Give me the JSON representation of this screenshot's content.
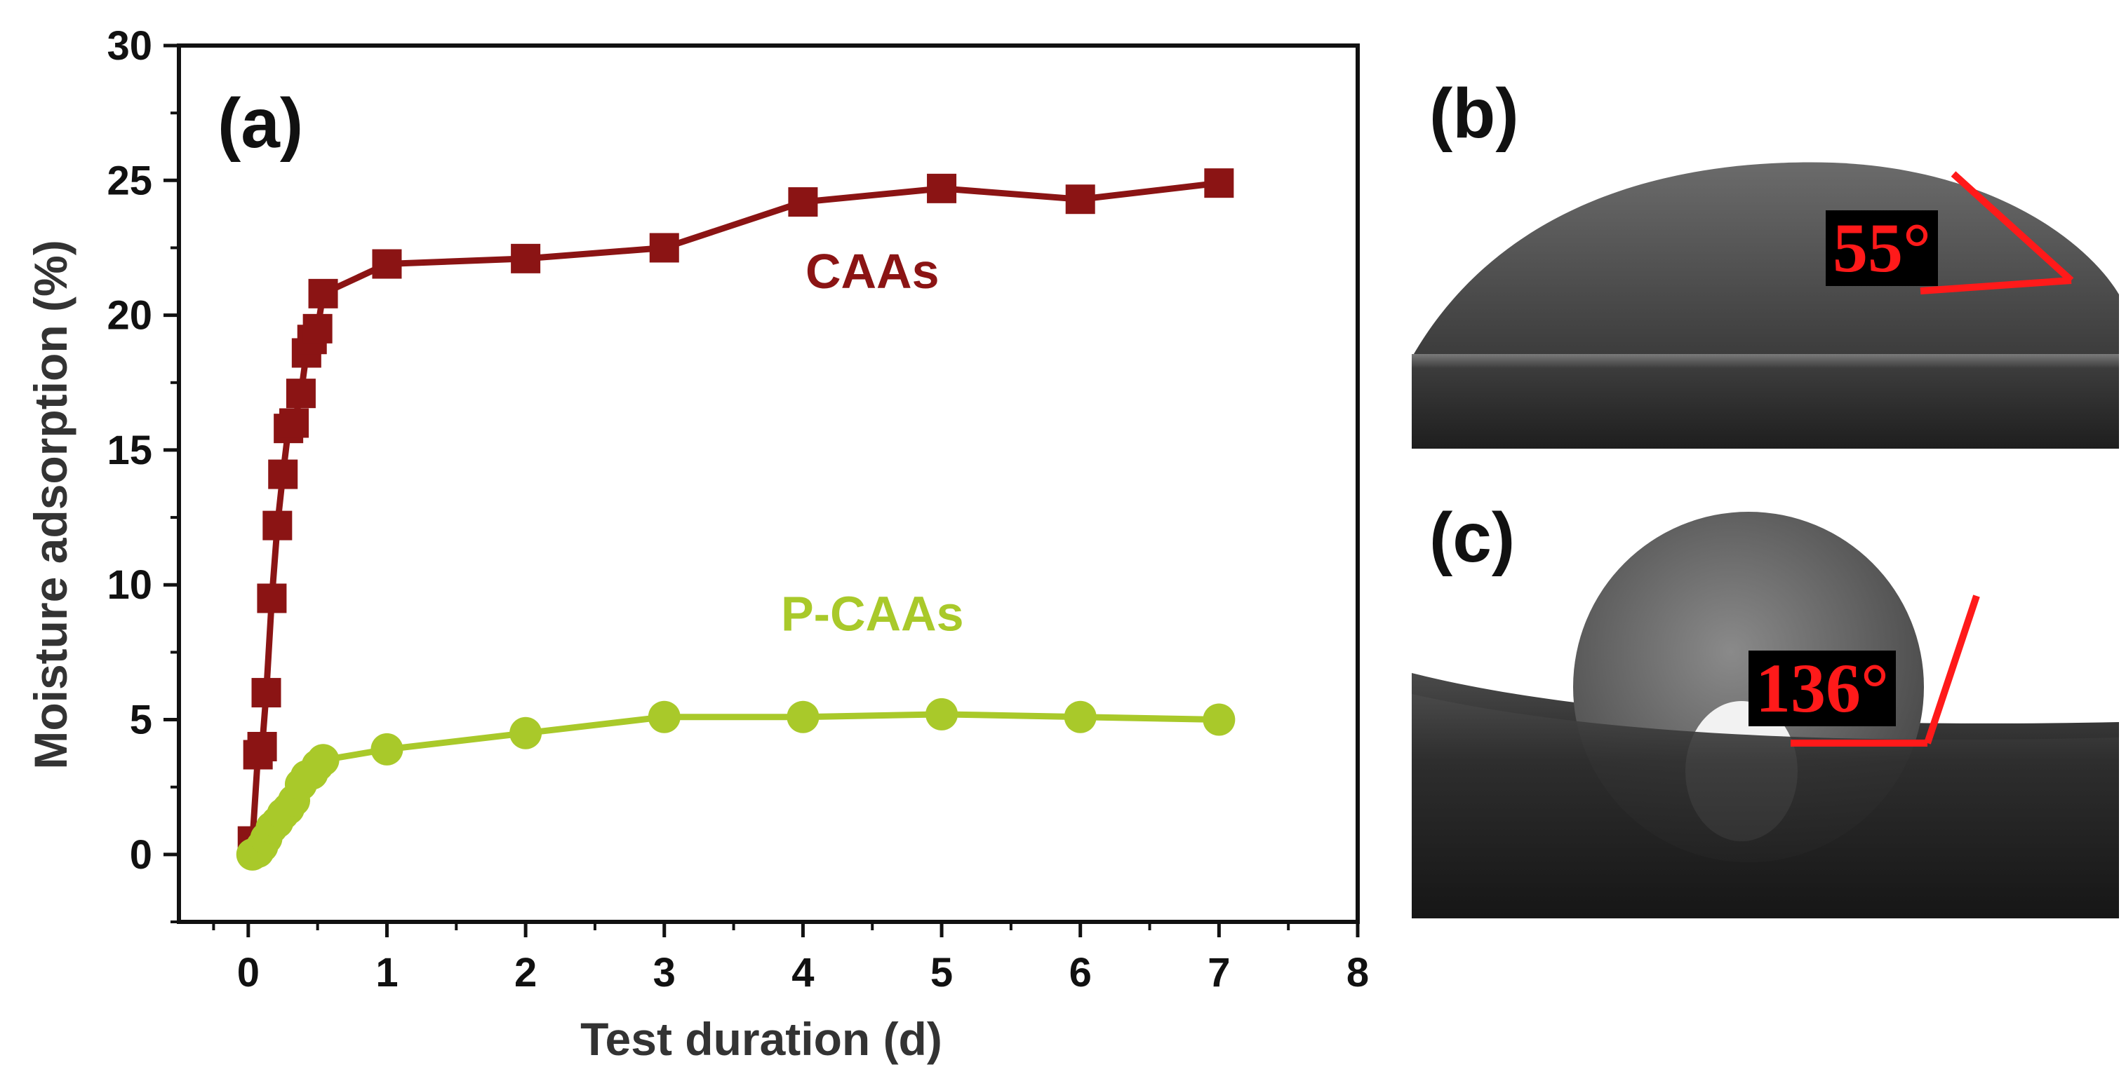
{
  "chart_data": {
    "type": "line",
    "panel_label": "(a)",
    "xlabel": "Test duration (d)",
    "ylabel": "Moisture adsorption (%)",
    "xlim": [
      -0.5,
      8
    ],
    "ylim": [
      -2.5,
      30
    ],
    "xticks": [
      0,
      1,
      2,
      3,
      4,
      5,
      6,
      7,
      8
    ],
    "yticks": [
      0,
      5,
      10,
      15,
      20,
      25,
      30
    ],
    "grid": false,
    "series": [
      {
        "name": "CAAs",
        "marker": "square",
        "color": "#8b1414",
        "x": [
          0.03,
          0.07,
          0.1,
          0.13,
          0.17,
          0.21,
          0.25,
          0.29,
          0.33,
          0.38,
          0.42,
          0.46,
          0.5,
          0.54,
          1,
          2,
          3,
          4,
          5,
          6,
          7
        ],
        "y": [
          0.5,
          3.7,
          4.0,
          6.0,
          9.5,
          12.2,
          14.1,
          15.8,
          16.0,
          17.1,
          18.6,
          19.1,
          19.5,
          20.8,
          21.9,
          22.1,
          22.5,
          24.2,
          24.7,
          24.3,
          24.9
        ]
      },
      {
        "name": "P-CAAs",
        "marker": "circle",
        "color": "#a9c92a",
        "x": [
          0.03,
          0.07,
          0.1,
          0.13,
          0.17,
          0.21,
          0.25,
          0.29,
          0.33,
          0.38,
          0.42,
          0.46,
          0.5,
          0.54,
          1,
          2,
          3,
          4,
          5,
          6,
          7
        ],
        "y": [
          0.0,
          0.1,
          0.3,
          0.6,
          1.0,
          1.2,
          1.5,
          1.7,
          2.0,
          2.6,
          2.9,
          3.0,
          3.3,
          3.5,
          3.9,
          4.5,
          5.1,
          5.1,
          5.2,
          5.1,
          5.0
        ]
      }
    ],
    "annotations": [
      {
        "text": "CAAs",
        "x": 4.5,
        "y": 21.0,
        "color": "#8b1414"
      },
      {
        "text": "P-CAAs",
        "x": 4.5,
        "y": 8.3,
        "color": "#a9c92a"
      }
    ]
  },
  "photos": {
    "b": {
      "label": "(b)",
      "angle": "55°",
      "description_hint": "droplet-low-angle"
    },
    "c": {
      "label": "(c)",
      "angle": "136°",
      "description_hint": "droplet-high-angle"
    }
  },
  "colors": {
    "axis": "#111111",
    "angle_line": "#ff1a1a",
    "photo_dark": "#2a2a2a"
  }
}
